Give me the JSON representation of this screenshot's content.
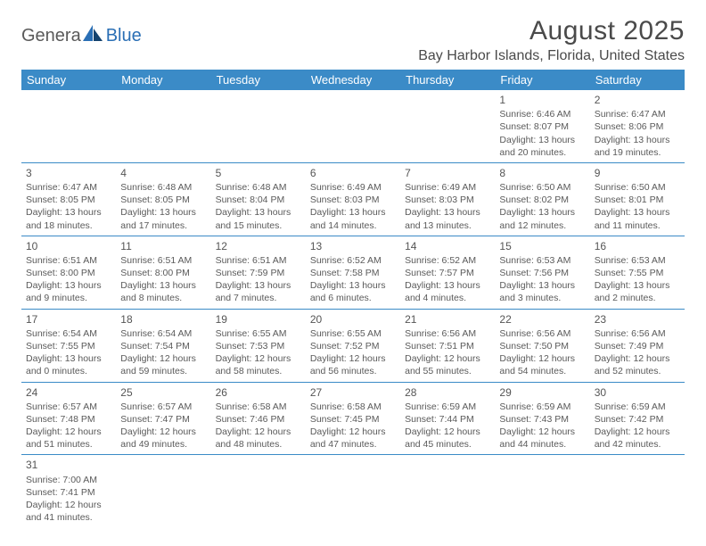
{
  "logo": {
    "general": "Genera",
    "blue": "Blue"
  },
  "title": "August 2025",
  "location": "Bay Harbor Islands, Florida, United States",
  "colors": {
    "header_bg": "#3b8bc7",
    "header_text": "#ffffff",
    "border": "#3b8bc7",
    "text": "#5a5a5a",
    "logo_gray": "#5a5a5a",
    "logo_blue": "#2a6fb5"
  },
  "weekdays": [
    "Sunday",
    "Monday",
    "Tuesday",
    "Wednesday",
    "Thursday",
    "Friday",
    "Saturday"
  ],
  "weeks": [
    [
      null,
      null,
      null,
      null,
      null,
      {
        "d": "1",
        "sr": "Sunrise: 6:46 AM",
        "ss": "Sunset: 8:07 PM",
        "dl": "Daylight: 13 hours and 20 minutes."
      },
      {
        "d": "2",
        "sr": "Sunrise: 6:47 AM",
        "ss": "Sunset: 8:06 PM",
        "dl": "Daylight: 13 hours and 19 minutes."
      }
    ],
    [
      {
        "d": "3",
        "sr": "Sunrise: 6:47 AM",
        "ss": "Sunset: 8:05 PM",
        "dl": "Daylight: 13 hours and 18 minutes."
      },
      {
        "d": "4",
        "sr": "Sunrise: 6:48 AM",
        "ss": "Sunset: 8:05 PM",
        "dl": "Daylight: 13 hours and 17 minutes."
      },
      {
        "d": "5",
        "sr": "Sunrise: 6:48 AM",
        "ss": "Sunset: 8:04 PM",
        "dl": "Daylight: 13 hours and 15 minutes."
      },
      {
        "d": "6",
        "sr": "Sunrise: 6:49 AM",
        "ss": "Sunset: 8:03 PM",
        "dl": "Daylight: 13 hours and 14 minutes."
      },
      {
        "d": "7",
        "sr": "Sunrise: 6:49 AM",
        "ss": "Sunset: 8:03 PM",
        "dl": "Daylight: 13 hours and 13 minutes."
      },
      {
        "d": "8",
        "sr": "Sunrise: 6:50 AM",
        "ss": "Sunset: 8:02 PM",
        "dl": "Daylight: 13 hours and 12 minutes."
      },
      {
        "d": "9",
        "sr": "Sunrise: 6:50 AM",
        "ss": "Sunset: 8:01 PM",
        "dl": "Daylight: 13 hours and 11 minutes."
      }
    ],
    [
      {
        "d": "10",
        "sr": "Sunrise: 6:51 AM",
        "ss": "Sunset: 8:00 PM",
        "dl": "Daylight: 13 hours and 9 minutes."
      },
      {
        "d": "11",
        "sr": "Sunrise: 6:51 AM",
        "ss": "Sunset: 8:00 PM",
        "dl": "Daylight: 13 hours and 8 minutes."
      },
      {
        "d": "12",
        "sr": "Sunrise: 6:51 AM",
        "ss": "Sunset: 7:59 PM",
        "dl": "Daylight: 13 hours and 7 minutes."
      },
      {
        "d": "13",
        "sr": "Sunrise: 6:52 AM",
        "ss": "Sunset: 7:58 PM",
        "dl": "Daylight: 13 hours and 6 minutes."
      },
      {
        "d": "14",
        "sr": "Sunrise: 6:52 AM",
        "ss": "Sunset: 7:57 PM",
        "dl": "Daylight: 13 hours and 4 minutes."
      },
      {
        "d": "15",
        "sr": "Sunrise: 6:53 AM",
        "ss": "Sunset: 7:56 PM",
        "dl": "Daylight: 13 hours and 3 minutes."
      },
      {
        "d": "16",
        "sr": "Sunrise: 6:53 AM",
        "ss": "Sunset: 7:55 PM",
        "dl": "Daylight: 13 hours and 2 minutes."
      }
    ],
    [
      {
        "d": "17",
        "sr": "Sunrise: 6:54 AM",
        "ss": "Sunset: 7:55 PM",
        "dl": "Daylight: 13 hours and 0 minutes."
      },
      {
        "d": "18",
        "sr": "Sunrise: 6:54 AM",
        "ss": "Sunset: 7:54 PM",
        "dl": "Daylight: 12 hours and 59 minutes."
      },
      {
        "d": "19",
        "sr": "Sunrise: 6:55 AM",
        "ss": "Sunset: 7:53 PM",
        "dl": "Daylight: 12 hours and 58 minutes."
      },
      {
        "d": "20",
        "sr": "Sunrise: 6:55 AM",
        "ss": "Sunset: 7:52 PM",
        "dl": "Daylight: 12 hours and 56 minutes."
      },
      {
        "d": "21",
        "sr": "Sunrise: 6:56 AM",
        "ss": "Sunset: 7:51 PM",
        "dl": "Daylight: 12 hours and 55 minutes."
      },
      {
        "d": "22",
        "sr": "Sunrise: 6:56 AM",
        "ss": "Sunset: 7:50 PM",
        "dl": "Daylight: 12 hours and 54 minutes."
      },
      {
        "d": "23",
        "sr": "Sunrise: 6:56 AM",
        "ss": "Sunset: 7:49 PM",
        "dl": "Daylight: 12 hours and 52 minutes."
      }
    ],
    [
      {
        "d": "24",
        "sr": "Sunrise: 6:57 AM",
        "ss": "Sunset: 7:48 PM",
        "dl": "Daylight: 12 hours and 51 minutes."
      },
      {
        "d": "25",
        "sr": "Sunrise: 6:57 AM",
        "ss": "Sunset: 7:47 PM",
        "dl": "Daylight: 12 hours and 49 minutes."
      },
      {
        "d": "26",
        "sr": "Sunrise: 6:58 AM",
        "ss": "Sunset: 7:46 PM",
        "dl": "Daylight: 12 hours and 48 minutes."
      },
      {
        "d": "27",
        "sr": "Sunrise: 6:58 AM",
        "ss": "Sunset: 7:45 PM",
        "dl": "Daylight: 12 hours and 47 minutes."
      },
      {
        "d": "28",
        "sr": "Sunrise: 6:59 AM",
        "ss": "Sunset: 7:44 PM",
        "dl": "Daylight: 12 hours and 45 minutes."
      },
      {
        "d": "29",
        "sr": "Sunrise: 6:59 AM",
        "ss": "Sunset: 7:43 PM",
        "dl": "Daylight: 12 hours and 44 minutes."
      },
      {
        "d": "30",
        "sr": "Sunrise: 6:59 AM",
        "ss": "Sunset: 7:42 PM",
        "dl": "Daylight: 12 hours and 42 minutes."
      }
    ],
    [
      {
        "d": "31",
        "sr": "Sunrise: 7:00 AM",
        "ss": "Sunset: 7:41 PM",
        "dl": "Daylight: 12 hours and 41 minutes."
      },
      null,
      null,
      null,
      null,
      null,
      null
    ]
  ]
}
